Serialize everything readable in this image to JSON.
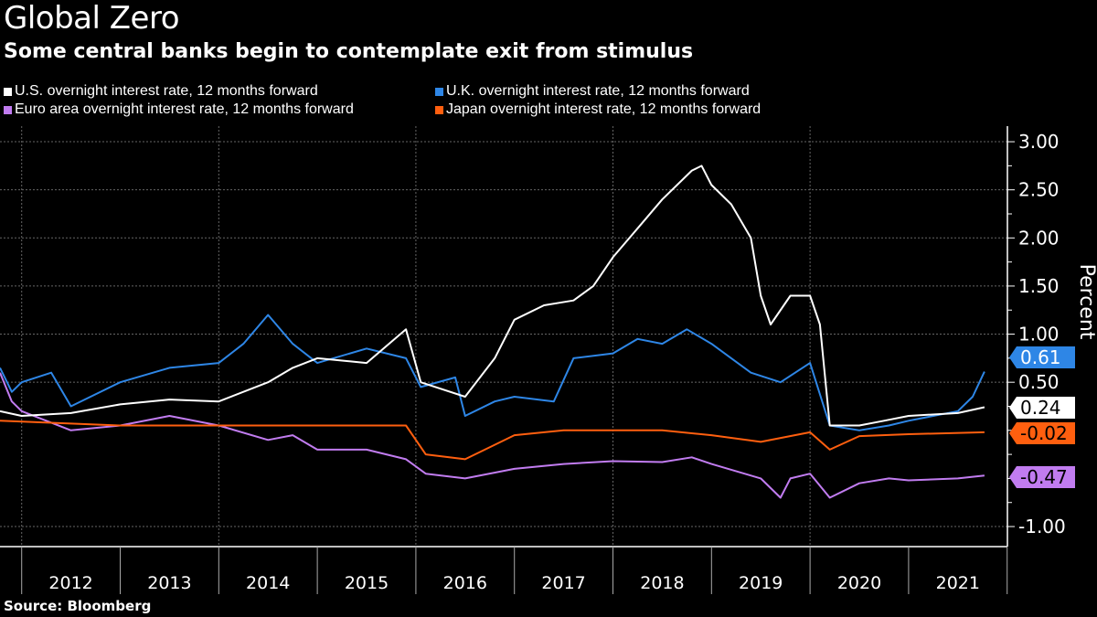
{
  "title": "Global Zero",
  "subtitle": "Some central banks begin to contemplate exit from stimulus",
  "source": "Source: Bloomberg",
  "chart_data": {
    "type": "line",
    "ylabel": "Percent",
    "ylim": [
      -1.15,
      3.15
    ],
    "xlim": [
      2011.78,
      2021.95
    ],
    "yticks": [
      "3.00",
      "2.50",
      "2.00",
      "1.50",
      "1.00",
      "0.50",
      "-1.00"
    ],
    "ytick_values": [
      3.0,
      2.5,
      2.0,
      1.5,
      1.0,
      0.5,
      -1.0
    ],
    "xtick_labels": [
      "2012",
      "2013",
      "2014",
      "2015",
      "2016",
      "2017",
      "2018",
      "2019",
      "2020",
      "2021"
    ],
    "grid": true,
    "legend_position": "top-left",
    "series": [
      {
        "name": "U.S. overnight interest rate, 12 months forward",
        "color": "#ffffff",
        "end_label": "0.24",
        "x": [
          2011.78,
          2012.0,
          2012.5,
          2013.0,
          2013.5,
          2014.0,
          2014.5,
          2014.75,
          2015.0,
          2015.5,
          2015.9,
          2016.05,
          2016.5,
          2016.8,
          2017.0,
          2017.3,
          2017.6,
          2017.8,
          2018.0,
          2018.25,
          2018.5,
          2018.8,
          2018.9,
          2019.0,
          2019.2,
          2019.4,
          2019.5,
          2019.6,
          2019.8,
          2020.0,
          2020.1,
          2020.2,
          2020.5,
          2020.75,
          2021.0,
          2021.5,
          2021.77
        ],
        "y": [
          0.2,
          0.15,
          0.18,
          0.27,
          0.32,
          0.3,
          0.5,
          0.65,
          0.75,
          0.7,
          1.05,
          0.5,
          0.35,
          0.75,
          1.15,
          1.3,
          1.35,
          1.5,
          1.8,
          2.1,
          2.4,
          2.7,
          2.75,
          2.55,
          2.35,
          2.0,
          1.4,
          1.1,
          1.4,
          1.4,
          1.1,
          0.05,
          0.05,
          0.1,
          0.15,
          0.18,
          0.24
        ]
      },
      {
        "name": "U.K. overnight interest rate, 12 months forward",
        "color": "#2e86e6",
        "end_label": "0.61",
        "x": [
          2011.78,
          2011.9,
          2012.0,
          2012.3,
          2012.5,
          2013.0,
          2013.5,
          2014.0,
          2014.25,
          2014.5,
          2014.75,
          2015.0,
          2015.5,
          2015.9,
          2016.05,
          2016.4,
          2016.5,
          2016.8,
          2017.0,
          2017.4,
          2017.6,
          2018.0,
          2018.25,
          2018.5,
          2018.75,
          2019.0,
          2019.4,
          2019.7,
          2020.0,
          2020.2,
          2020.5,
          2020.8,
          2021.0,
          2021.5,
          2021.65,
          2021.77
        ],
        "y": [
          0.65,
          0.4,
          0.5,
          0.6,
          0.25,
          0.5,
          0.65,
          0.7,
          0.9,
          1.2,
          0.9,
          0.7,
          0.85,
          0.75,
          0.45,
          0.55,
          0.15,
          0.3,
          0.35,
          0.3,
          0.75,
          0.8,
          0.95,
          0.9,
          1.05,
          0.9,
          0.6,
          0.5,
          0.7,
          0.05,
          0.0,
          0.05,
          0.1,
          0.2,
          0.35,
          0.61
        ]
      },
      {
        "name": "Euro area overnight interest rate, 12 months forward",
        "color": "#c17cf0",
        "end_label": "-0.47",
        "x": [
          2011.78,
          2011.9,
          2012.0,
          2012.5,
          2013.0,
          2013.5,
          2014.0,
          2014.5,
          2014.75,
          2015.0,
          2015.5,
          2015.9,
          2016.1,
          2016.5,
          2017.0,
          2017.5,
          2018.0,
          2018.5,
          2018.8,
          2019.0,
          2019.5,
          2019.7,
          2019.8,
          2020.0,
          2020.2,
          2020.5,
          2020.8,
          2021.0,
          2021.5,
          2021.77
        ],
        "y": [
          0.6,
          0.3,
          0.2,
          0.0,
          0.05,
          0.15,
          0.05,
          -0.1,
          -0.05,
          -0.2,
          -0.2,
          -0.3,
          -0.45,
          -0.5,
          -0.4,
          -0.35,
          -0.32,
          -0.33,
          -0.28,
          -0.35,
          -0.5,
          -0.7,
          -0.5,
          -0.45,
          -0.7,
          -0.55,
          -0.5,
          -0.52,
          -0.5,
          -0.47
        ]
      },
      {
        "name": "Japan overnight interest rate, 12 months forward",
        "color": "#ff5f0f",
        "end_label": "-0.02",
        "x": [
          2011.78,
          2012.5,
          2013.0,
          2014.0,
          2015.0,
          2015.9,
          2016.1,
          2016.5,
          2016.8,
          2017.0,
          2017.5,
          2018.0,
          2018.5,
          2019.0,
          2019.5,
          2020.0,
          2020.2,
          2020.5,
          2021.0,
          2021.77
        ],
        "y": [
          0.1,
          0.07,
          0.05,
          0.05,
          0.05,
          0.05,
          -0.25,
          -0.3,
          -0.15,
          -0.05,
          0.0,
          0.0,
          0.0,
          -0.05,
          -0.12,
          -0.02,
          -0.2,
          -0.06,
          -0.04,
          -0.02
        ]
      }
    ]
  }
}
